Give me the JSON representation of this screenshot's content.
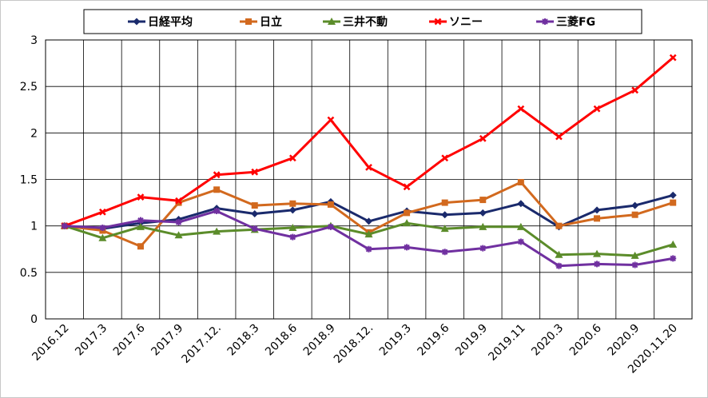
{
  "chart_data": {
    "type": "line",
    "title": "",
    "xlabel": "",
    "ylabel": "",
    "categories": [
      "2016.12",
      "2017.3",
      "2017.6",
      "2017.9",
      "2017.12.",
      "2018.3",
      "2018.6",
      "2018.9",
      "2018.12.",
      "2019.3",
      "2019.6",
      "2019.9",
      "2019.11",
      "2020.3",
      "2020.6",
      "2020.9",
      "2020.11.20"
    ],
    "ylim": [
      0,
      3
    ],
    "yticks": [
      "0",
      "0.5",
      "1",
      "1.5",
      "2",
      "2.5",
      "3"
    ],
    "grid": true,
    "legend_position": "top",
    "series": [
      {
        "name": "日経平均",
        "color": "#1a2a6c",
        "marker": "diamond",
        "values": [
          1.0,
          0.97,
          1.03,
          1.07,
          1.19,
          1.13,
          1.17,
          1.26,
          1.05,
          1.16,
          1.12,
          1.14,
          1.24,
          0.99,
          1.17,
          1.22,
          1.33
        ]
      },
      {
        "name": "日立",
        "color": "#d2691e",
        "marker": "square",
        "values": [
          1.0,
          0.95,
          0.78,
          1.25,
          1.39,
          1.22,
          1.24,
          1.23,
          0.93,
          1.14,
          1.25,
          1.28,
          1.47,
          1.0,
          1.08,
          1.12,
          1.25
        ]
      },
      {
        "name": "三井不動",
        "color": "#5b8c2a",
        "marker": "triangle",
        "values": [
          1.0,
          0.87,
          0.99,
          0.9,
          0.94,
          0.96,
          0.98,
          1.0,
          0.91,
          1.03,
          0.97,
          0.99,
          0.99,
          0.69,
          0.7,
          0.68,
          0.8
        ]
      },
      {
        "name": "ソニー",
        "color": "#ff0000",
        "marker": "cross",
        "values": [
          1.0,
          1.15,
          1.31,
          1.27,
          1.55,
          1.58,
          1.73,
          2.14,
          1.63,
          1.42,
          1.73,
          1.94,
          2.26,
          1.96,
          2.26,
          2.46,
          2.81
        ]
      },
      {
        "name": "三菱FG",
        "color": "#7030a0",
        "marker": "star",
        "values": [
          1.0,
          0.98,
          1.06,
          1.04,
          1.16,
          0.97,
          0.88,
          0.99,
          0.75,
          0.77,
          0.72,
          0.76,
          0.83,
          0.57,
          0.59,
          0.58,
          0.65
        ]
      }
    ]
  }
}
